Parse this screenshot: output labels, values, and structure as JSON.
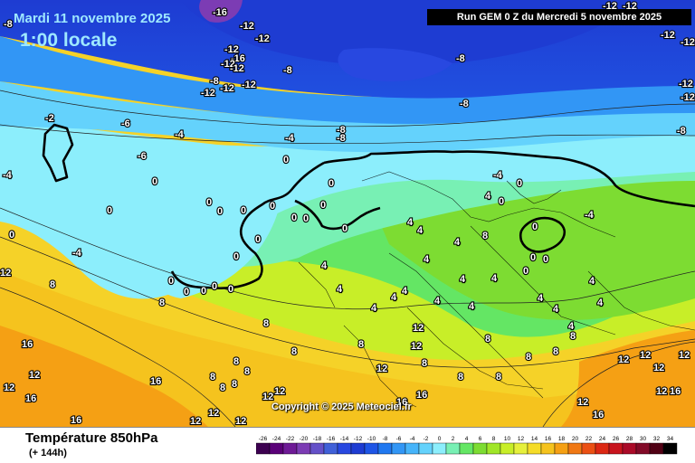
{
  "title": {
    "date": "Mardi 11 novembre 2025",
    "time": "1:00 locale"
  },
  "run": "Run GEM 0 Z du Mercredi 5 novembre 2025",
  "copyright": "Copyright © 2025 Meteociel.fr",
  "parameter": "Température 850hPa",
  "forecast": "(+ 144h)",
  "legend_values": [
    "-26",
    "-24",
    "-22",
    "-20",
    "-18",
    "-16",
    "-14",
    "-12",
    "-10",
    "-8",
    "-6",
    "-4",
    "-2",
    "0",
    "2",
    "4",
    "6",
    "8",
    "10",
    "12",
    "14",
    "16",
    "18",
    "20",
    "22",
    "24",
    "26",
    "28",
    "30",
    "32",
    "34"
  ],
  "legend_colors": [
    "#3c0050",
    "#5a0078",
    "#6e1a96",
    "#7c3cb4",
    "#6450c8",
    "#4060d8",
    "#2848e0",
    "#1e3cd2",
    "#1e55e6",
    "#2078f0",
    "#3296f5",
    "#46b4fa",
    "#64d2fc",
    "#8ceefc",
    "#78f0b4",
    "#64e664",
    "#7ddc32",
    "#a0e628",
    "#c8ee28",
    "#e6f03c",
    "#f5dc28",
    "#f5c31e",
    "#f5a014",
    "#f07814",
    "#eb5014",
    "#dc2814",
    "#c8141e",
    "#aa0a28",
    "#820a28",
    "#500014",
    "#000000"
  ],
  "temperature_labels": [
    {
      "v": "-16"
    },
    {
      "v": "-12"
    },
    {
      "v": "-12"
    },
    {
      "v": "-12"
    },
    {
      "v": "-16"
    },
    {
      "v": "-12"
    },
    {
      "v": "-12"
    },
    {
      "v": "-8"
    },
    {
      "v": "-12"
    },
    {
      "v": "-12"
    },
    {
      "v": "-12"
    },
    {
      "v": "-8"
    },
    {
      "v": "-12"
    },
    {
      "v": "-12"
    },
    {
      "v": "-12"
    },
    {
      "v": "-12"
    },
    {
      "v": "-8"
    },
    {
      "v": "-8"
    },
    {
      "v": "-12"
    },
    {
      "v": "-12"
    },
    {
      "v": "-8"
    },
    {
      "v": "-8"
    },
    {
      "v": "-8"
    },
    {
      "v": "-6"
    },
    {
      "v": "-4"
    },
    {
      "v": "-6"
    },
    {
      "v": "-8"
    },
    {
      "v": "-4"
    },
    {
      "v": "-4"
    },
    {
      "v": "-4"
    },
    {
      "v": "-4"
    },
    {
      "v": "-4"
    },
    {
      "v": "-2"
    },
    {
      "v": "0"
    },
    {
      "v": "0"
    },
    {
      "v": "0"
    },
    {
      "v": "0"
    },
    {
      "v": "0"
    },
    {
      "v": "0"
    },
    {
      "v": "0"
    },
    {
      "v": "0"
    },
    {
      "v": "0"
    },
    {
      "v": "0"
    },
    {
      "v": "0"
    },
    {
      "v": "0"
    },
    {
      "v": "0"
    },
    {
      "v": "0"
    },
    {
      "v": "0"
    },
    {
      "v": "0"
    },
    {
      "v": "0"
    },
    {
      "v": "0"
    },
    {
      "v": "0"
    },
    {
      "v": "0"
    },
    {
      "v": "0"
    },
    {
      "v": "0"
    },
    {
      "v": "0"
    },
    {
      "v": "0"
    },
    {
      "v": "0"
    },
    {
      "v": "0"
    },
    {
      "v": "4"
    },
    {
      "v": "4"
    },
    {
      "v": "4"
    },
    {
      "v": "4"
    },
    {
      "v": "4"
    },
    {
      "v": "4"
    },
    {
      "v": "4"
    },
    {
      "v": "4"
    },
    {
      "v": "4"
    },
    {
      "v": "4"
    },
    {
      "v": "4"
    },
    {
      "v": "4"
    },
    {
      "v": "4"
    },
    {
      "v": "4"
    },
    {
      "v": "4"
    },
    {
      "v": "4"
    },
    {
      "v": "4"
    },
    {
      "v": "4"
    },
    {
      "v": "4"
    },
    {
      "v": "8"
    },
    {
      "v": "8"
    },
    {
      "v": "8"
    },
    {
      "v": "8"
    },
    {
      "v": "8"
    },
    {
      "v": "8"
    },
    {
      "v": "8"
    },
    {
      "v": "8"
    },
    {
      "v": "8"
    },
    {
      "v": "8"
    },
    {
      "v": "8"
    },
    {
      "v": "8"
    },
    {
      "v": "8"
    },
    {
      "v": "8"
    },
    {
      "v": "8"
    },
    {
      "v": "8"
    },
    {
      "v": "8"
    },
    {
      "v": "8"
    },
    {
      "v": "12"
    },
    {
      "v": "12"
    },
    {
      "v": "12"
    },
    {
      "v": "12"
    },
    {
      "v": "12"
    },
    {
      "v": "12"
    },
    {
      "v": "12"
    },
    {
      "v": "12"
    },
    {
      "v": "12"
    },
    {
      "v": "12"
    },
    {
      "v": "12"
    },
    {
      "v": "12"
    },
    {
      "v": "12"
    },
    {
      "v": "12"
    },
    {
      "v": "12"
    },
    {
      "v": "12"
    },
    {
      "v": "12"
    },
    {
      "v": "16"
    },
    {
      "v": "16"
    },
    {
      "v": "16"
    },
    {
      "v": "16"
    },
    {
      "v": "16"
    },
    {
      "v": "16"
    },
    {
      "v": "16"
    },
    {
      "v": "16"
    },
    {
      "v": "16"
    },
    {
      "v": "16"
    }
  ]
}
